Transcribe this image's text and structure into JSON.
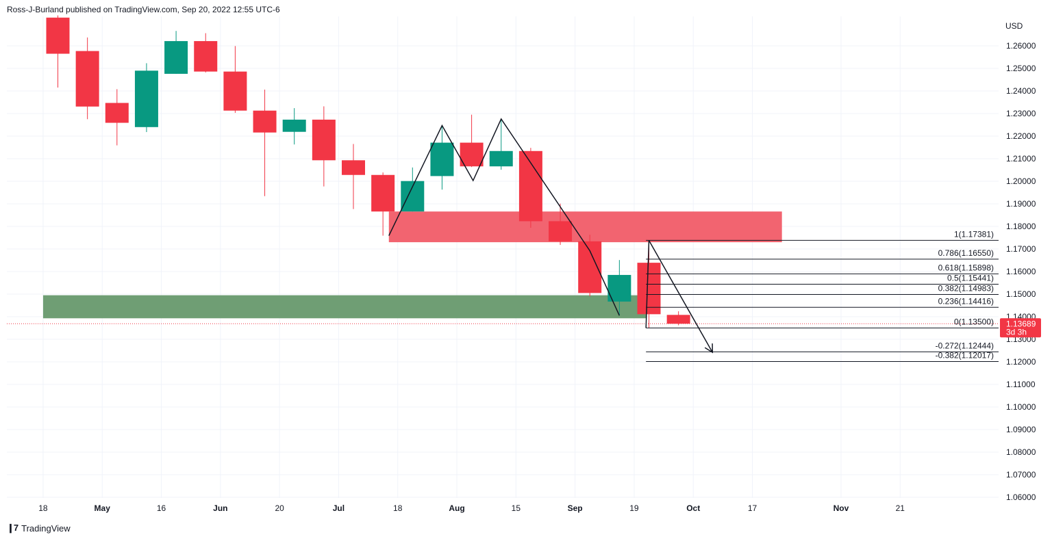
{
  "header": {
    "attribution": "Ross-J-Burland published on TradingView.com, Sep 20, 2022 12:55 UTC-6"
  },
  "footer": {
    "brand": "TradingView"
  },
  "chart_data": {
    "type": "candlestick",
    "currency": "USD",
    "ylim": [
      1.06,
      1.27
    ],
    "y_ticks": [
      {
        "value": 1.26,
        "label": "1.26000"
      },
      {
        "value": 1.25,
        "label": "1.25000"
      },
      {
        "value": 1.24,
        "label": "1.24000"
      },
      {
        "value": 1.23,
        "label": "1.23000"
      },
      {
        "value": 1.22,
        "label": "1.22000"
      },
      {
        "value": 1.21,
        "label": "1.21000"
      },
      {
        "value": 1.2,
        "label": "1.20000"
      },
      {
        "value": 1.19,
        "label": "1.19000"
      },
      {
        "value": 1.18,
        "label": "1.18000"
      },
      {
        "value": 1.17,
        "label": "1.17000"
      },
      {
        "value": 1.16,
        "label": "1.16000"
      },
      {
        "value": 1.15,
        "label": "1.15000"
      },
      {
        "value": 1.14,
        "label": "1.14000"
      },
      {
        "value": 1.13,
        "label": "1.13000"
      },
      {
        "value": 1.12,
        "label": "1.12000"
      },
      {
        "value": 1.11,
        "label": "1.11000"
      },
      {
        "value": 1.1,
        "label": "1.10000"
      },
      {
        "value": 1.09,
        "label": "1.09000"
      },
      {
        "value": 1.08,
        "label": "1.08000"
      },
      {
        "value": 1.07,
        "label": "1.07000"
      },
      {
        "value": 1.06,
        "label": "1.06000"
      }
    ],
    "x_ticks": [
      {
        "week": -0.5,
        "label": "18",
        "bold": false
      },
      {
        "week": 1.5,
        "label": "May",
        "bold": true
      },
      {
        "week": 3.5,
        "label": "16",
        "bold": false
      },
      {
        "week": 5.5,
        "label": "Jun",
        "bold": true
      },
      {
        "week": 7.5,
        "label": "20",
        "bold": false
      },
      {
        "week": 9.5,
        "label": "Jul",
        "bold": true
      },
      {
        "week": 11.5,
        "label": "18",
        "bold": false
      },
      {
        "week": 13.5,
        "label": "Aug",
        "bold": true
      },
      {
        "week": 15.5,
        "label": "15",
        "bold": false
      },
      {
        "week": 17.5,
        "label": "Sep",
        "bold": true
      },
      {
        "week": 19.5,
        "label": "19",
        "bold": false
      },
      {
        "week": 21.5,
        "label": "Oct",
        "bold": true
      },
      {
        "week": 23.5,
        "label": "17",
        "bold": false
      },
      {
        "week": 26.5,
        "label": "Nov",
        "bold": true
      },
      {
        "week": 28.5,
        "label": "21",
        "bold": false
      }
    ],
    "candles": [
      {
        "o": 1.2725,
        "h": 1.2735,
        "l": 1.2415,
        "c": 1.2565
      },
      {
        "o": 1.2577,
        "h": 1.2637,
        "l": 1.2275,
        "c": 1.2331
      },
      {
        "o": 1.2347,
        "h": 1.2408,
        "l": 1.2159,
        "c": 1.2259
      },
      {
        "o": 1.224,
        "h": 1.2523,
        "l": 1.2218,
        "c": 1.249
      },
      {
        "o": 1.2476,
        "h": 1.2666,
        "l": 1.2476,
        "c": 1.2621
      },
      {
        "o": 1.2621,
        "h": 1.2656,
        "l": 1.2482,
        "c": 1.2486
      },
      {
        "o": 1.2486,
        "h": 1.2599,
        "l": 1.2303,
        "c": 1.2313
      },
      {
        "o": 1.2313,
        "h": 1.2406,
        "l": 1.1934,
        "c": 1.2216
      },
      {
        "o": 1.2219,
        "h": 1.2324,
        "l": 1.2163,
        "c": 1.2273
      },
      {
        "o": 1.2273,
        "h": 1.2332,
        "l": 1.1977,
        "c": 1.2093
      },
      {
        "o": 1.2093,
        "h": 1.2165,
        "l": 1.1877,
        "c": 1.2028
      },
      {
        "o": 1.2028,
        "h": 1.2039,
        "l": 1.1759,
        "c": 1.1866
      },
      {
        "o": 1.1866,
        "h": 1.2061,
        "l": 1.1866,
        "c": 1.2001
      },
      {
        "o": 1.2023,
        "h": 1.2249,
        "l": 1.1963,
        "c": 1.2171
      },
      {
        "o": 1.2171,
        "h": 1.2295,
        "l": 1.2063,
        "c": 1.2066
      },
      {
        "o": 1.2066,
        "h": 1.2275,
        "l": 1.2051,
        "c": 1.2134
      },
      {
        "o": 1.2134,
        "h": 1.2148,
        "l": 1.1794,
        "c": 1.1823
      },
      {
        "o": 1.1823,
        "h": 1.1901,
        "l": 1.1718,
        "c": 1.1734
      },
      {
        "o": 1.1734,
        "h": 1.1763,
        "l": 1.149,
        "c": 1.1505
      },
      {
        "o": 1.1467,
        "h": 1.1651,
        "l": 1.1405,
        "c": 1.1585
      },
      {
        "o": 1.1639,
        "h": 1.1738,
        "l": 1.135,
        "c": 1.1411
      },
      {
        "o": 1.1408,
        "h": 1.1424,
        "l": 1.1362,
        "c": 1.1369
      }
    ],
    "current_price": {
      "value": 1.13689,
      "label": "1.13689",
      "countdown": "3d 3h"
    },
    "fibonacci": [
      {
        "label": "1(1.17381)",
        "value": 1.17381
      },
      {
        "label": "0.786(1.16550)",
        "value": 1.1655
      },
      {
        "label": "0.618(1.15898)",
        "value": 1.15898
      },
      {
        "label": "0.5(1.15441)",
        "value": 1.15441
      },
      {
        "label": "0.382(1.14983)",
        "value": 1.14983
      },
      {
        "label": "0.236(1.14416)",
        "value": 1.14416
      },
      {
        "label": "0(1.13500)",
        "value": 1.135
      },
      {
        "label": "-0.272(1.12444)",
        "value": 1.12444
      },
      {
        "label": "-0.382(1.12017)",
        "value": 1.12017
      }
    ],
    "zones": [
      {
        "name": "supply-zone",
        "from_week": 11.2,
        "to_week": 24.5,
        "top": 1.1866,
        "bottom": 1.173,
        "color": "#f26470"
      },
      {
        "name": "demand-zone",
        "from_week": -0.5,
        "to_week": 19.9,
        "top": 1.1495,
        "bottom": 1.1393,
        "color": "#6f9e74"
      }
    ],
    "pattern_line": [
      {
        "week": 11.2,
        "price": 1.1759
      },
      {
        "week": 13.0,
        "price": 1.2247
      },
      {
        "week": 14.05,
        "price": 1.2003
      },
      {
        "week": 15.0,
        "price": 1.2276
      },
      {
        "week": 18.0,
        "price": 1.1692
      },
      {
        "week": 19.0,
        "price": 1.1405
      }
    ],
    "projection_line": [
      {
        "week": 20.0,
        "price": 1.1738
      },
      {
        "week": 22.15,
        "price": 1.1242
      }
    ],
    "entry_line": [
      {
        "week": 19.9,
        "price": 1.135
      },
      {
        "week": 20.0,
        "price": 1.1738
      }
    ],
    "colors": {
      "up": "#089981",
      "down": "#f23645",
      "grid": "#f0f3fa",
      "fib_line": "#131722",
      "price_badge": "#f23645"
    }
  }
}
